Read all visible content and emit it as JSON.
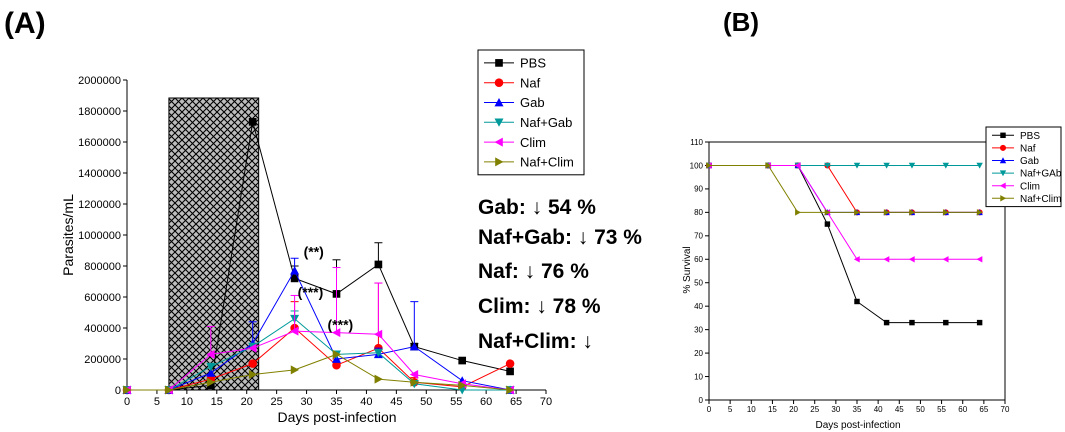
{
  "chart_data": [
    {
      "panel_label": "(A)",
      "type": "line",
      "xlabel": "Days post-infection",
      "ylabel": "Parasites/mL",
      "xlim": [
        0,
        70
      ],
      "ylim": [
        0,
        2000000
      ],
      "x_ticks": [
        0,
        5,
        10,
        15,
        20,
        25,
        30,
        35,
        40,
        45,
        50,
        55,
        60,
        65,
        70
      ],
      "y_ticks": [
        0,
        200000,
        400000,
        600000,
        800000,
        1000000,
        1200000,
        1400000,
        1600000,
        1800000,
        2000000
      ],
      "shaded_region": {
        "x": [
          7,
          22
        ],
        "pattern": "crosshatch"
      },
      "legend_position": "top-right",
      "series": [
        {
          "name": "PBS",
          "color": "#000000",
          "marker": "square",
          "x": [
            0,
            7,
            14,
            21,
            28,
            35,
            42,
            48,
            56,
            64
          ],
          "y": [
            0,
            0,
            30000,
            1730000,
            720000,
            620000,
            810000,
            280000,
            190000,
            120000
          ],
          "error": [
            0,
            0,
            0,
            0,
            80000,
            220000,
            140000,
            20000,
            0,
            0
          ]
        },
        {
          "name": "Naf",
          "color": "#ff0000",
          "marker": "circle",
          "x": [
            0,
            7,
            14,
            21,
            28,
            35,
            42,
            48,
            56,
            64
          ],
          "y": [
            0,
            0,
            70000,
            170000,
            400000,
            160000,
            270000,
            50000,
            20000,
            170000
          ],
          "error": [
            0,
            0,
            0,
            0,
            170000,
            40000,
            420000,
            30000,
            0,
            0
          ]
        },
        {
          "name": "Gab",
          "color": "#0000ff",
          "marker": "triangle-up",
          "x": [
            0,
            7,
            14,
            21,
            28,
            35,
            42,
            48,
            56,
            64
          ],
          "y": [
            0,
            0,
            110000,
            300000,
            770000,
            200000,
            230000,
            280000,
            60000,
            0
          ],
          "error": [
            0,
            0,
            0,
            140000,
            80000,
            0,
            40000,
            290000,
            0,
            0
          ]
        },
        {
          "name": "Naf+Gab",
          "color": "#009999",
          "marker": "triangle-down",
          "x": [
            0,
            7,
            14,
            21,
            28,
            35,
            42,
            48,
            56,
            64
          ],
          "y": [
            0,
            0,
            150000,
            280000,
            460000,
            230000,
            240000,
            40000,
            0,
            0
          ],
          "error": [
            0,
            0,
            0,
            0,
            50000,
            0,
            0,
            0,
            0,
            0
          ]
        },
        {
          "name": "Clim",
          "color": "#ff00ff",
          "marker": "triangle-left",
          "x": [
            0,
            7,
            14,
            21,
            28,
            35,
            42,
            48,
            56,
            64
          ],
          "y": [
            0,
            0,
            230000,
            270000,
            380000,
            370000,
            360000,
            100000,
            40000,
            0
          ],
          "error": [
            0,
            0,
            180000,
            0,
            230000,
            420000,
            330000,
            0,
            0,
            0
          ]
        },
        {
          "name": "Naf+Clim",
          "color": "#808000",
          "marker": "triangle-right",
          "x": [
            0,
            7,
            14,
            21,
            28,
            35,
            42,
            48,
            56,
            64
          ],
          "y": [
            0,
            0,
            50000,
            100000,
            130000,
            230000,
            70000,
            50000,
            30000,
            0
          ],
          "error": [
            0,
            0,
            0,
            0,
            0,
            0,
            0,
            0,
            0,
            0
          ]
        }
      ],
      "annotations": [
        {
          "text": "(**)",
          "x": 29.5,
          "y": 860000
        },
        {
          "text": "(***)",
          "x": 28.5,
          "y": 600000
        },
        {
          "text": "(***)",
          "x": 33.5,
          "y": 390000
        }
      ],
      "side_text": [
        "Gab: ↓ 54 %",
        "Naf+Gab: ↓ 73 %",
        "Naf: ↓ 76 %",
        "Clim: ↓ 78 %",
        "Naf+Clim: ↓"
      ]
    },
    {
      "panel_label": "(B)",
      "type": "line",
      "xlabel": "Days post-infection",
      "ylabel": "% Survival",
      "xlim": [
        0,
        70
      ],
      "ylim": [
        0,
        110
      ],
      "x_ticks": [
        0,
        5,
        10,
        15,
        20,
        25,
        30,
        35,
        40,
        45,
        50,
        55,
        60,
        65,
        70
      ],
      "y_ticks": [
        0,
        10,
        20,
        30,
        40,
        50,
        60,
        70,
        80,
        90,
        100,
        110
      ],
      "legend_position": "top-right",
      "series": [
        {
          "name": "PBS",
          "color": "#000000",
          "marker": "square",
          "x": [
            0,
            14,
            21,
            28,
            35,
            42,
            48,
            56,
            64
          ],
          "y": [
            100,
            100,
            100,
            75,
            42,
            33,
            33,
            33,
            33
          ]
        },
        {
          "name": "Naf",
          "color": "#ff0000",
          "marker": "circle",
          "x": [
            0,
            14,
            21,
            28,
            35,
            42,
            48,
            56,
            64
          ],
          "y": [
            100,
            100,
            100,
            100,
            80,
            80,
            80,
            80,
            80
          ]
        },
        {
          "name": "Gab",
          "color": "#0000ff",
          "marker": "triangle-up",
          "x": [
            0,
            14,
            21,
            28,
            35,
            42,
            48,
            56,
            64
          ],
          "y": [
            100,
            100,
            100,
            80,
            80,
            80,
            80,
            80,
            80
          ]
        },
        {
          "name": "Naf+GAb",
          "color": "#009999",
          "marker": "triangle-down",
          "x": [
            0,
            14,
            21,
            28,
            35,
            42,
            48,
            56,
            64
          ],
          "y": [
            100,
            100,
            100,
            100,
            100,
            100,
            100,
            100,
            100
          ]
        },
        {
          "name": "Clim",
          "color": "#ff00ff",
          "marker": "triangle-left",
          "x": [
            0,
            14,
            21,
            28,
            35,
            42,
            48,
            56,
            64
          ],
          "y": [
            100,
            100,
            100,
            80,
            60,
            60,
            60,
            60,
            60
          ]
        },
        {
          "name": "Naf+Clim",
          "color": "#808000",
          "marker": "triangle-right",
          "x": [
            0,
            14,
            21,
            28,
            35,
            42,
            48,
            56,
            64
          ],
          "y": [
            100,
            100,
            80,
            80,
            80,
            80,
            80,
            80,
            80
          ]
        }
      ]
    }
  ]
}
